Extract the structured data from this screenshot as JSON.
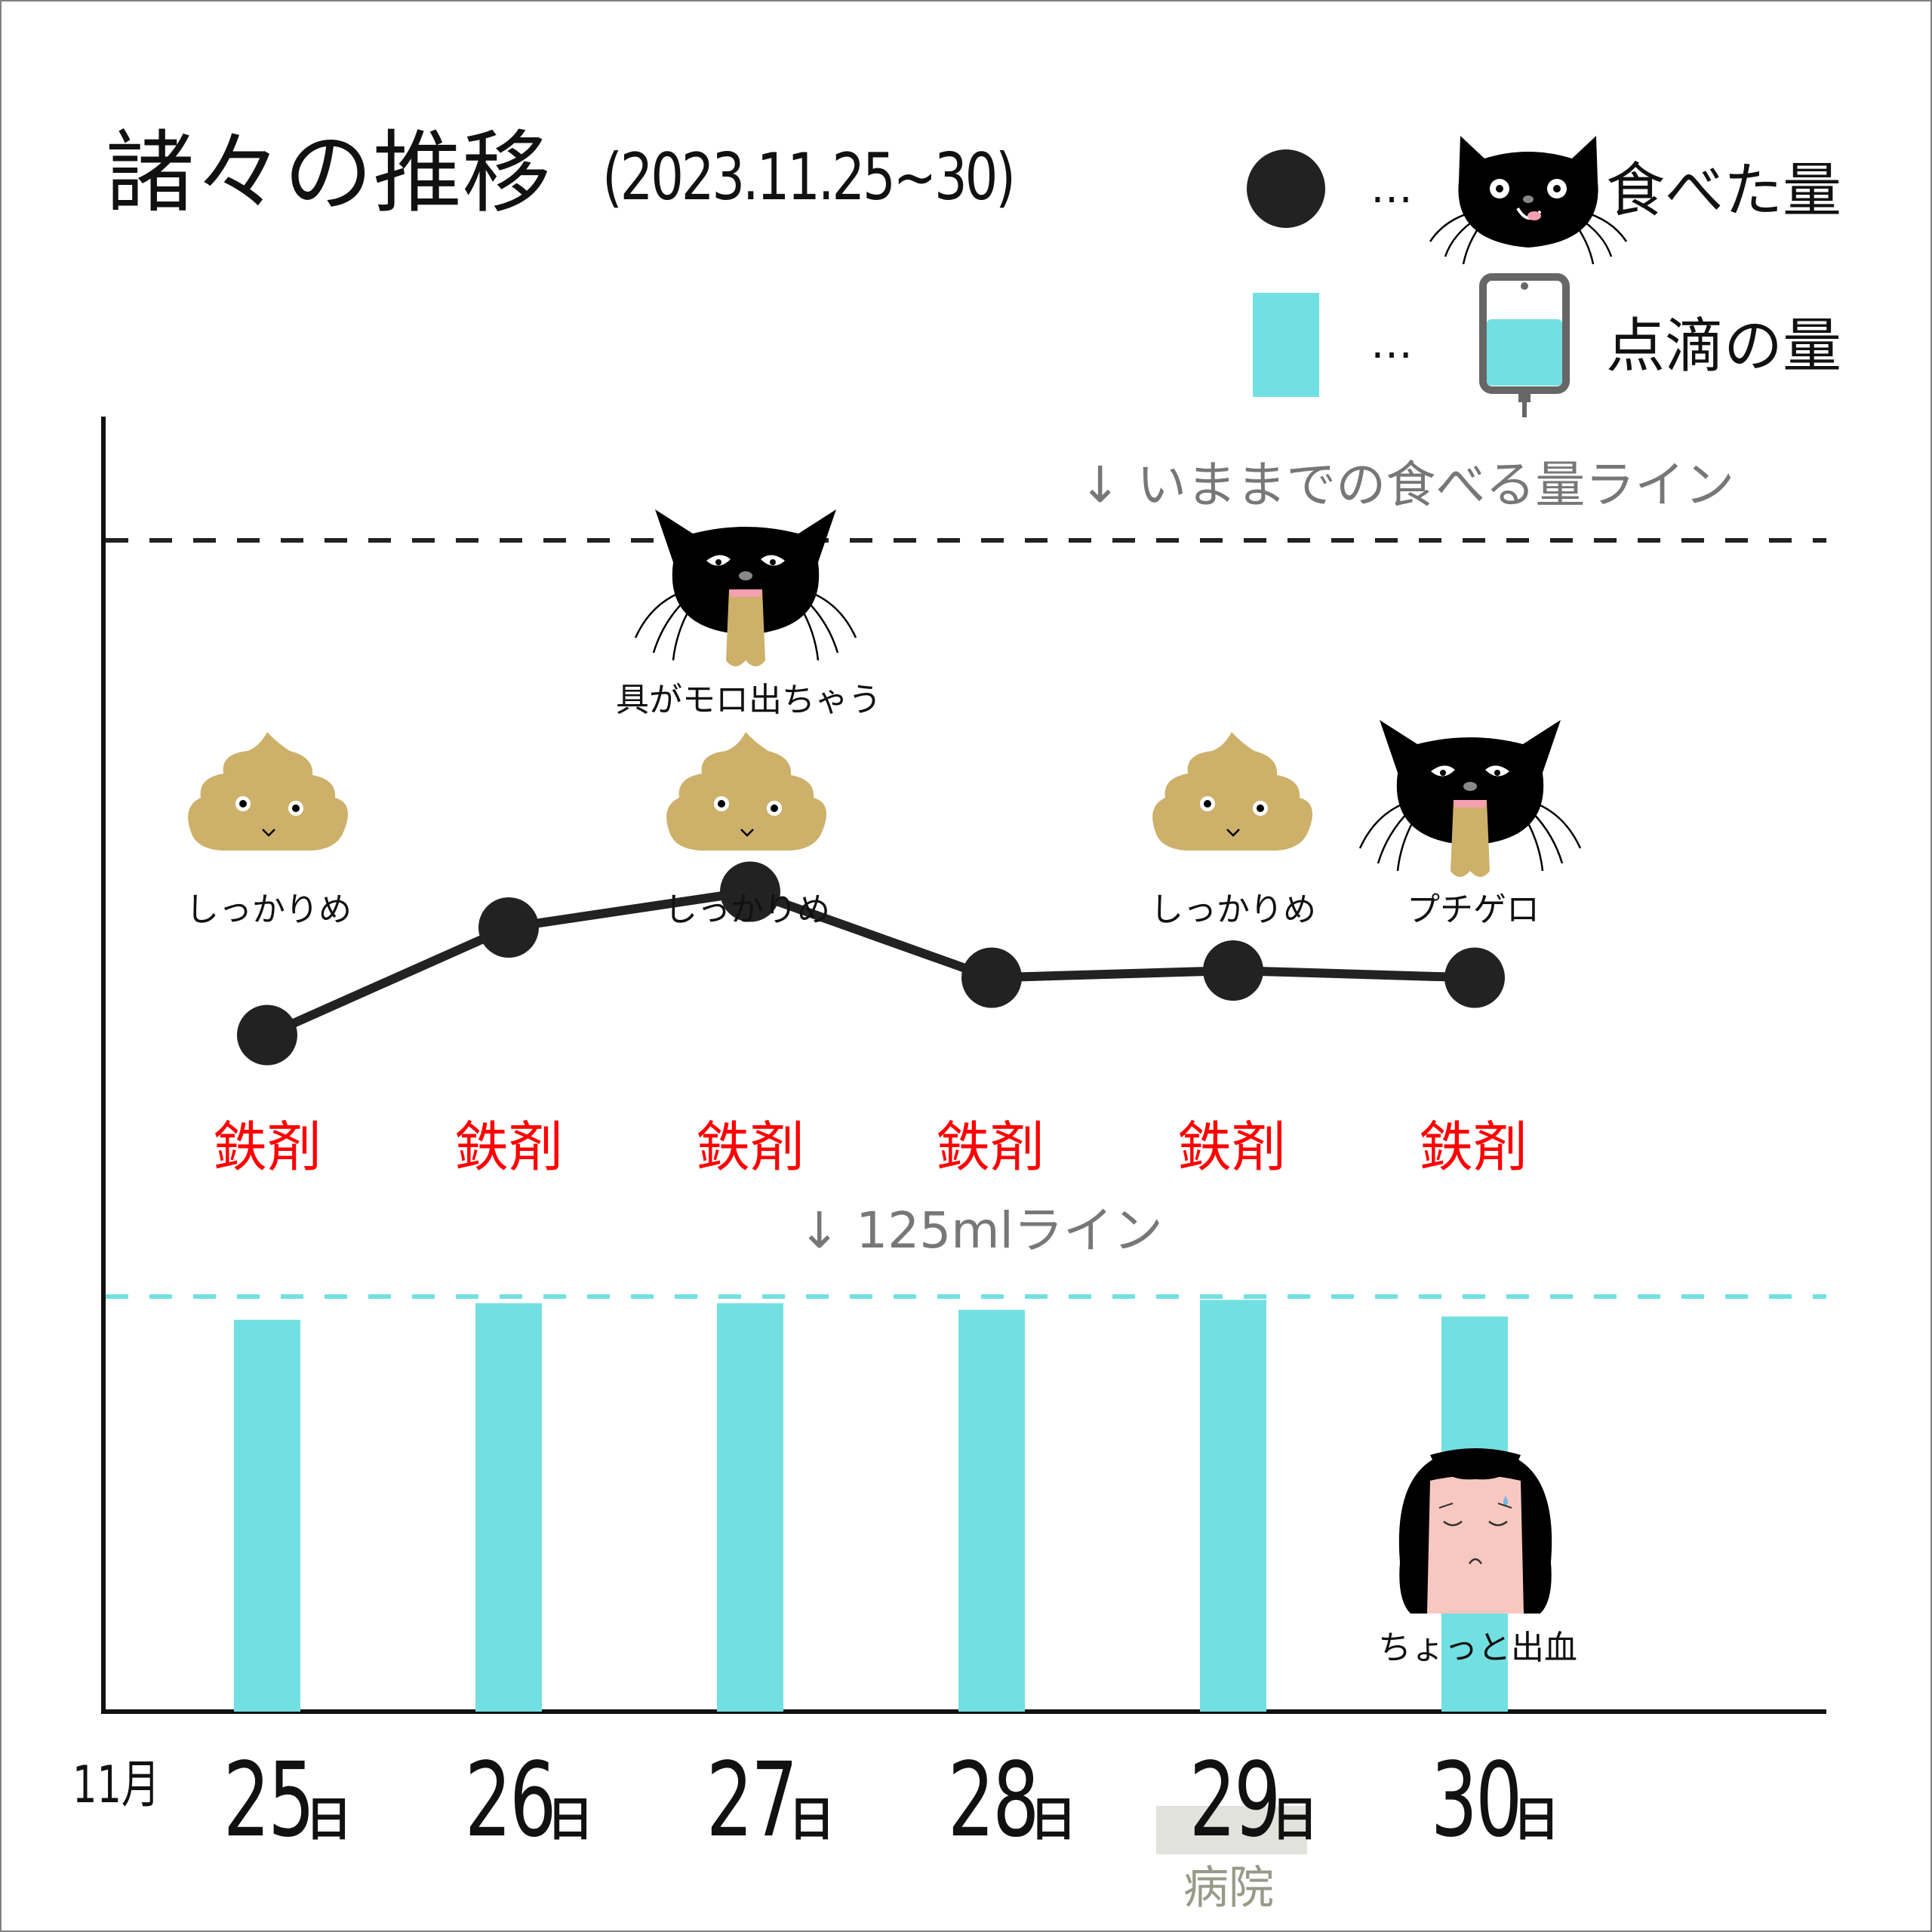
{
  "title": "諸々の推移",
  "subtitle": "(2023.11.25~30)",
  "legend": {
    "ellipsis": "…",
    "food_label": "食べた量",
    "drip_label": "点滴の量"
  },
  "reference_lines": {
    "food_line_label": "↓ いままでの食べる量ライン",
    "drip_line_label": "↓ 125mlライン"
  },
  "x_axis": {
    "month_label": "11月",
    "day_unit": "日",
    "hospital_day": "29",
    "hospital_label": "病院"
  },
  "annotations": {
    "poop_label": "しっかりめ",
    "vomit_big_label": "具がモロ出ちゃう",
    "vomit_small_label": "プチゲロ",
    "bleeding_label": "ちょっと出血",
    "iron_label": "鉄剤"
  },
  "colors": {
    "food_dot": "#222222",
    "drip_bar": "#72e0e2",
    "iron_text": "#ff0000",
    "food_ref_line": "#222222",
    "drip_ref_line": "#72e0e2",
    "poop": "#cdb06a",
    "hospital_highlight": "#e1e2dc"
  },
  "chart_data": {
    "type": "line+bar",
    "title": "諸々の推移",
    "subtitle": "(2023.11.25~30)",
    "categories": [
      "25",
      "26",
      "27",
      "28",
      "29",
      "30"
    ],
    "series": [
      {
        "name": "食べた量",
        "type": "line",
        "values": [
          0.31,
          0.46,
          0.51,
          0.39,
          0.4,
          0.39
        ]
      },
      {
        "name": "点滴の量",
        "type": "bar",
        "unit": "ml",
        "values": [
          118,
          123,
          123,
          121,
          124,
          119
        ]
      }
    ],
    "reference_lines": [
      {
        "series": "食べた量",
        "value": 1.0,
        "label": "↓ いままでの食べる量ライン"
      },
      {
        "series": "点滴の量",
        "value": 125,
        "label": "↓ 125mlライン"
      }
    ],
    "ylim_food": [
      0,
      1
    ],
    "ylim_drip": [
      0,
      125
    ],
    "daily_markers": [
      {
        "day": "25",
        "events": [
          "しっかりめ",
          "鉄剤"
        ]
      },
      {
        "day": "26",
        "events": [
          "鉄剤"
        ]
      },
      {
        "day": "27",
        "events": [
          "具がモロ出ちゃう",
          "しっかりめ",
          "鉄剤"
        ]
      },
      {
        "day": "28",
        "events": [
          "鉄剤"
        ]
      },
      {
        "day": "29",
        "events": [
          "しっかりめ",
          "鉄剤",
          "病院"
        ]
      },
      {
        "day": "30",
        "events": [
          "プチゲロ",
          "鉄剤",
          "ちょっと出血"
        ]
      }
    ]
  }
}
